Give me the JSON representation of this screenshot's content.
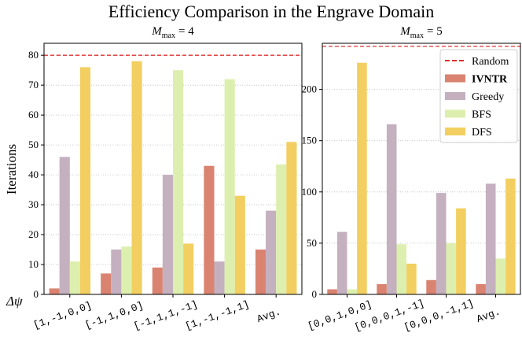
{
  "title": "Efficiency Comparison in the Engrave Domain",
  "ylabel": "Iterations",
  "xlabel": "Δψ",
  "legend": {
    "location": "upper right",
    "reference": {
      "name": "Random",
      "color": "#e03030",
      "style": "dashed"
    },
    "series": [
      {
        "name": "IVNTR",
        "color": "#d98370",
        "bold": true
      },
      {
        "name": "Greedy",
        "color": "#c4b0bf",
        "bold": false
      },
      {
        "name": "BFS",
        "color": "#ddefae",
        "bold": false
      },
      {
        "name": "DFS",
        "color": "#f2cf60",
        "bold": false
      }
    ]
  },
  "chart_data": [
    {
      "type": "bar",
      "title": [
        "M",
        "max",
        "= 4"
      ],
      "categories": [
        "[1,-1,0,0]",
        "[-1,1,0,0]",
        "[-1,1,1,-1]",
        "[1,-1,-1,1]",
        "Avg."
      ],
      "series": [
        {
          "values": [
            2,
            7,
            9,
            43,
            15
          ]
        },
        {
          "values": [
            46,
            15,
            40,
            11,
            28
          ]
        },
        {
          "values": [
            11,
            16,
            75,
            72,
            43.5
          ]
        },
        {
          "values": [
            76,
            78,
            17,
            33,
            51
          ]
        }
      ],
      "random": 80,
      "ylim": [
        0,
        84
      ],
      "yticks": [
        0,
        10,
        20,
        30,
        40,
        50,
        60,
        70,
        80
      ],
      "grid": true,
      "legend": false
    },
    {
      "type": "bar",
      "title": [
        "M",
        "max",
        "= 5"
      ],
      "categories": [
        "[0,0,1,0,0]",
        "[0,0,0,1,-1]",
        "[0,0,0,-1,1]",
        "Avg."
      ],
      "series": [
        {
          "values": [
            5,
            10,
            14,
            10
          ]
        },
        {
          "values": [
            61,
            166,
            99,
            108
          ]
        },
        {
          "values": [
            5,
            49,
            50,
            35
          ]
        },
        {
          "values": [
            226,
            30,
            84,
            113
          ]
        }
      ],
      "random": 242,
      "ylim": [
        0,
        245
      ],
      "yticks": [
        0,
        50,
        100,
        150,
        200
      ],
      "grid": true,
      "legend": true
    }
  ]
}
